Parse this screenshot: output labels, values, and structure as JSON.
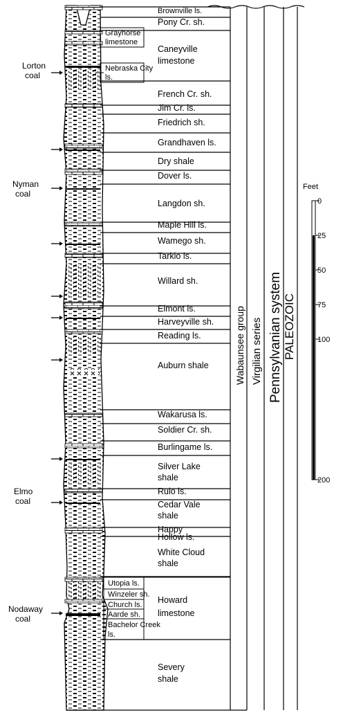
{
  "formations": [
    {
      "label": "Brownville ls."
    },
    {
      "label": "Pony Cr. sh."
    },
    {
      "label": "Caneyville limestone"
    },
    {
      "label": "French Cr. sh."
    },
    {
      "label": "Jim Cr. ls."
    },
    {
      "label": "Friedrich sh."
    },
    {
      "label": "Grandhaven ls."
    },
    {
      "label": "Dry shale"
    },
    {
      "label": "Dover ls."
    },
    {
      "label": "Langdon sh."
    },
    {
      "label": "Maple Hill ls."
    },
    {
      "label": "Wamego sh."
    },
    {
      "label": "Tarkio ls."
    },
    {
      "label": "Willard sh."
    },
    {
      "label": "Elmont ls."
    },
    {
      "label": "Harveyville sh."
    },
    {
      "label": "Reading ls."
    },
    {
      "label": "Auburn shale"
    },
    {
      "label": "Wakarusa ls."
    },
    {
      "label": "Soldier Cr. sh."
    },
    {
      "label": "Burlingame ls."
    },
    {
      "label": "Silver Lake shale"
    },
    {
      "label": "Rulo ls."
    },
    {
      "label": "Cedar Vale shale"
    },
    {
      "label": "Happy Hollow ls."
    },
    {
      "label": "White Cloud shale"
    },
    {
      "label": "Howard limestone"
    },
    {
      "label": "Severy shale"
    }
  ],
  "members": [
    {
      "label": "Grayhorse limestone"
    },
    {
      "label": "Nebraska City ls."
    },
    {
      "label": "Utopia ls."
    },
    {
      "label": "Winzeler sh."
    },
    {
      "label": "Church ls."
    },
    {
      "label": "Aarde sh."
    },
    {
      "label": "Bachelor Creek ls."
    }
  ],
  "coals": [
    {
      "label": "Lorton coal"
    },
    {
      "label": "Nyman coal"
    },
    {
      "label": "Elmo coal"
    },
    {
      "label": "Nodaway coal"
    }
  ],
  "units": {
    "group": "Wabaunsee group",
    "series": "Virgilian series",
    "system": "Pennsylvanian system",
    "era": "PALEOZOIC"
  },
  "scale": {
    "unit": "Feet",
    "ticks": [
      "0",
      "25",
      "50",
      "75",
      "100",
      "200"
    ]
  }
}
